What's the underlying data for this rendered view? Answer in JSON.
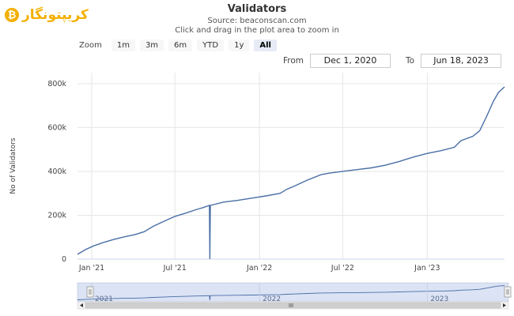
{
  "logo": {
    "text": "کریپتونگار",
    "icon": "₿"
  },
  "header": {
    "title": "Validators",
    "source": "Source: beaconscan.com",
    "instruction": "Click and drag in the plot area to zoom in"
  },
  "zoom": {
    "label": "Zoom",
    "buttons": [
      "1m",
      "3m",
      "6m",
      "YTD",
      "1y",
      "All"
    ],
    "active": "All"
  },
  "range": {
    "from_label": "From",
    "from_value": "Dec 1, 2020",
    "to_label": "To",
    "to_value": "Jun 18, 2023"
  },
  "colors": {
    "line": "#4a6fa5",
    "navigator_fill": "#dbe3f5",
    "grid": "#e6e6e6"
  },
  "chart_data": {
    "type": "line",
    "title": "Validators",
    "subtitle": "Source: beaconscan.com",
    "xlabel": "",
    "ylabel": "No of Validators",
    "x_range": [
      "2020-12-01",
      "2023-06-18"
    ],
    "ylim": [
      0,
      850000
    ],
    "yticks": [
      0,
      200000,
      400000,
      600000,
      800000
    ],
    "ytick_labels": [
      "0",
      "200k",
      "400k",
      "600k",
      "800k"
    ],
    "xtick_labels": [
      "Jan '21",
      "Jul '21",
      "Jan '22",
      "Jul '22",
      "Jan '23"
    ],
    "xtick_dates": [
      "2021-01-01",
      "2021-07-01",
      "2022-01-01",
      "2022-07-01",
      "2023-01-01"
    ],
    "navigator_labels": [
      "2021",
      "2022",
      "2023"
    ],
    "navigator_label_dates": [
      "2021-01-01",
      "2022-01-01",
      "2023-01-01"
    ],
    "grid": true,
    "legend": "none",
    "series": [
      {
        "points": [
          [
            "2020-12-01",
            22000
          ],
          [
            "2020-12-20",
            45000
          ],
          [
            "2021-01-05",
            60000
          ],
          [
            "2021-01-25",
            75000
          ],
          [
            "2021-02-15",
            88000
          ],
          [
            "2021-03-10",
            100000
          ],
          [
            "2021-04-05",
            112000
          ],
          [
            "2021-04-25",
            125000
          ],
          [
            "2021-05-15",
            150000
          ],
          [
            "2021-06-10",
            175000
          ],
          [
            "2021-07-01",
            195000
          ],
          [
            "2021-07-25",
            210000
          ],
          [
            "2021-08-15",
            225000
          ],
          [
            "2021-08-31",
            235000
          ],
          [
            "2021-09-14",
            245000
          ],
          [
            "2021-09-15",
            0
          ],
          [
            "2021-09-16",
            245000
          ],
          [
            "2021-10-15",
            260000
          ],
          [
            "2021-11-15",
            268000
          ],
          [
            "2021-12-15",
            278000
          ],
          [
            "2022-01-15",
            288000
          ],
          [
            "2022-02-15",
            300000
          ],
          [
            "2022-03-01",
            318000
          ],
          [
            "2022-03-20",
            335000
          ],
          [
            "2022-04-15",
            360000
          ],
          [
            "2022-05-15",
            385000
          ],
          [
            "2022-06-01",
            392000
          ],
          [
            "2022-07-01",
            400000
          ],
          [
            "2022-08-01",
            408000
          ],
          [
            "2022-09-01",
            416000
          ],
          [
            "2022-10-01",
            428000
          ],
          [
            "2022-11-01",
            445000
          ],
          [
            "2022-12-01",
            465000
          ],
          [
            "2023-01-01",
            482000
          ],
          [
            "2023-02-01",
            495000
          ],
          [
            "2023-03-01",
            510000
          ],
          [
            "2023-03-15",
            540000
          ],
          [
            "2023-04-10",
            560000
          ],
          [
            "2023-04-25",
            585000
          ],
          [
            "2023-05-10",
            650000
          ],
          [
            "2023-05-25",
            720000
          ],
          [
            "2023-06-05",
            760000
          ],
          [
            "2023-06-18",
            785000
          ]
        ]
      }
    ]
  }
}
